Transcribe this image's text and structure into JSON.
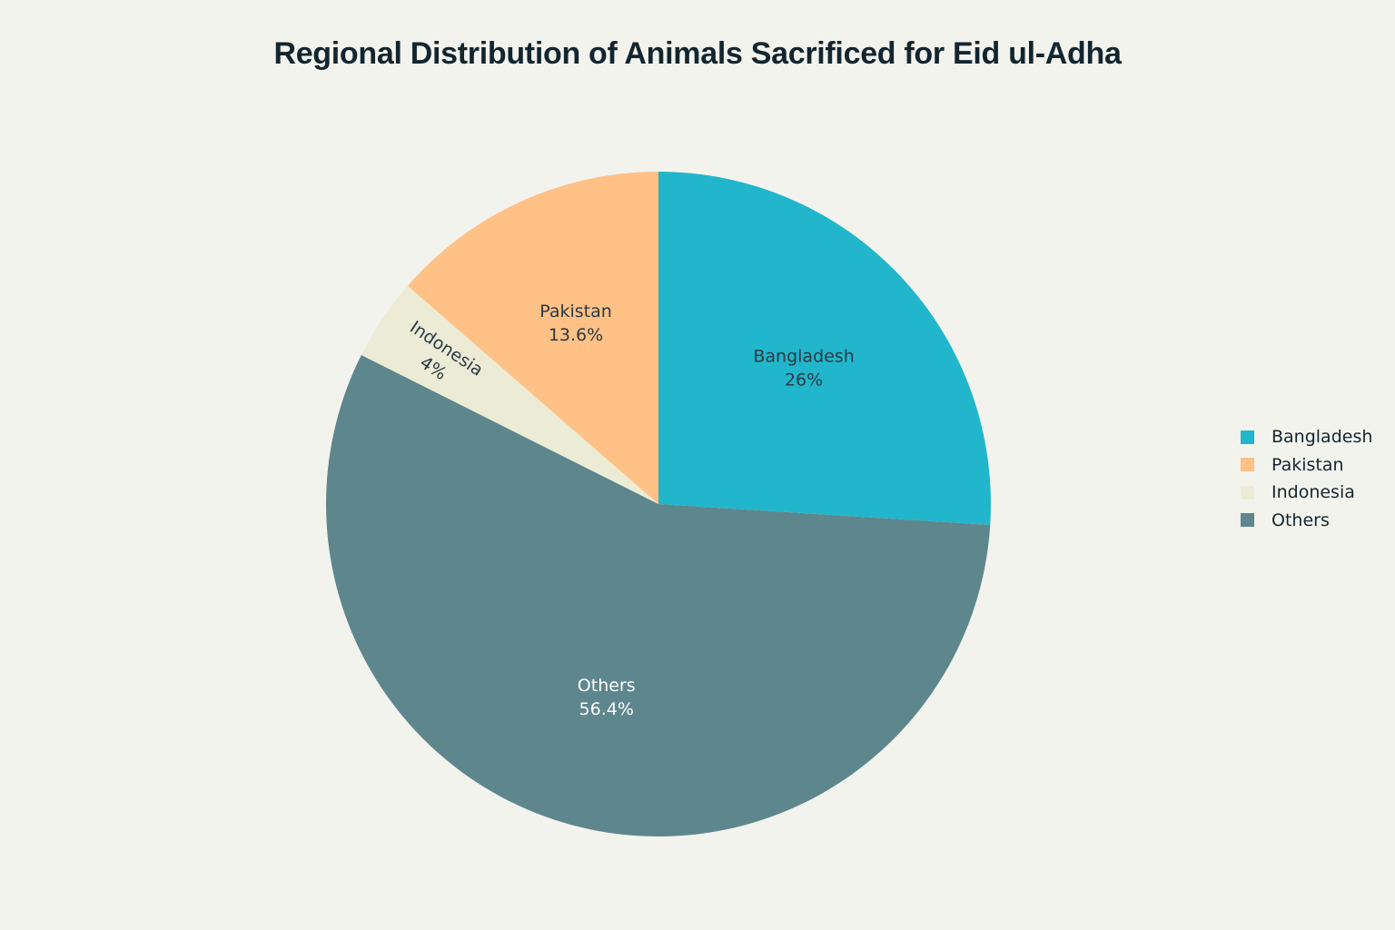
{
  "chart_data": {
    "type": "pie",
    "title": "Regional Distribution of Animals Sacrificed for Eid ul-Adha",
    "slices": [
      {
        "label": "Bangladesh",
        "value": 26,
        "display": "26%",
        "color": "#21b6cc",
        "text_color": "#2b3a44"
      },
      {
        "label": "Others",
        "value": 56.4,
        "display": "56.4%",
        "color": "#5e868d",
        "text_color": "#ffffff"
      },
      {
        "label": "Indonesia",
        "value": 4,
        "display": "4%",
        "color": "#ecebd6",
        "text_color": "#2b3a44"
      },
      {
        "label": "Pakistan",
        "value": 13.6,
        "display": "13.6%",
        "color": "#ffc185",
        "text_color": "#2b3a44"
      }
    ],
    "legend": {
      "placement": "right",
      "items": [
        {
          "label": "Bangladesh",
          "color": "#21b6cc"
        },
        {
          "label": "Pakistan",
          "color": "#ffc185"
        },
        {
          "label": "Indonesia",
          "color": "#ecebd6"
        },
        {
          "label": "Others",
          "color": "#5e868d"
        }
      ]
    }
  }
}
